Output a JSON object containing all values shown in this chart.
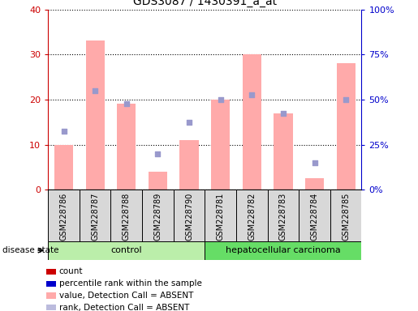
{
  "title": "GDS3087 / 1430391_a_at",
  "samples": [
    "GSM228786",
    "GSM228787",
    "GSM228788",
    "GSM228789",
    "GSM228790",
    "GSM228781",
    "GSM228782",
    "GSM228783",
    "GSM228784",
    "GSM228785"
  ],
  "bar_values": [
    10,
    33,
    19,
    4,
    11,
    20,
    30,
    17,
    2.5,
    28
  ],
  "dot_values_left": [
    13,
    22,
    19,
    8,
    15,
    20,
    21,
    17,
    6,
    20
  ],
  "bar_color": "#ffaaaa",
  "dot_color": "#9999cc",
  "ylim": [
    0,
    40
  ],
  "y2lim": [
    0,
    100
  ],
  "yticks": [
    0,
    10,
    20,
    30,
    40
  ],
  "y2ticks": [
    0,
    25,
    50,
    75,
    100
  ],
  "y2ticklabels": [
    "0%",
    "25%",
    "50%",
    "75%",
    "100%"
  ],
  "ytick_color": "#cc0000",
  "y2tick_color": "#0000cc",
  "control_samples": 5,
  "control_label": "control",
  "cancer_label": "hepatocellular carcinoma",
  "control_bg": "#bbeeaa",
  "cancer_bg": "#66dd66",
  "disease_state_label": "disease state",
  "cell_bg": "#d8d8d8",
  "legend_labels": [
    "count",
    "percentile rank within the sample",
    "value, Detection Call = ABSENT",
    "rank, Detection Call = ABSENT"
  ],
  "legend_colors": [
    "#cc0000",
    "#0000cc",
    "#ffaaaa",
    "#bbbbdd"
  ]
}
